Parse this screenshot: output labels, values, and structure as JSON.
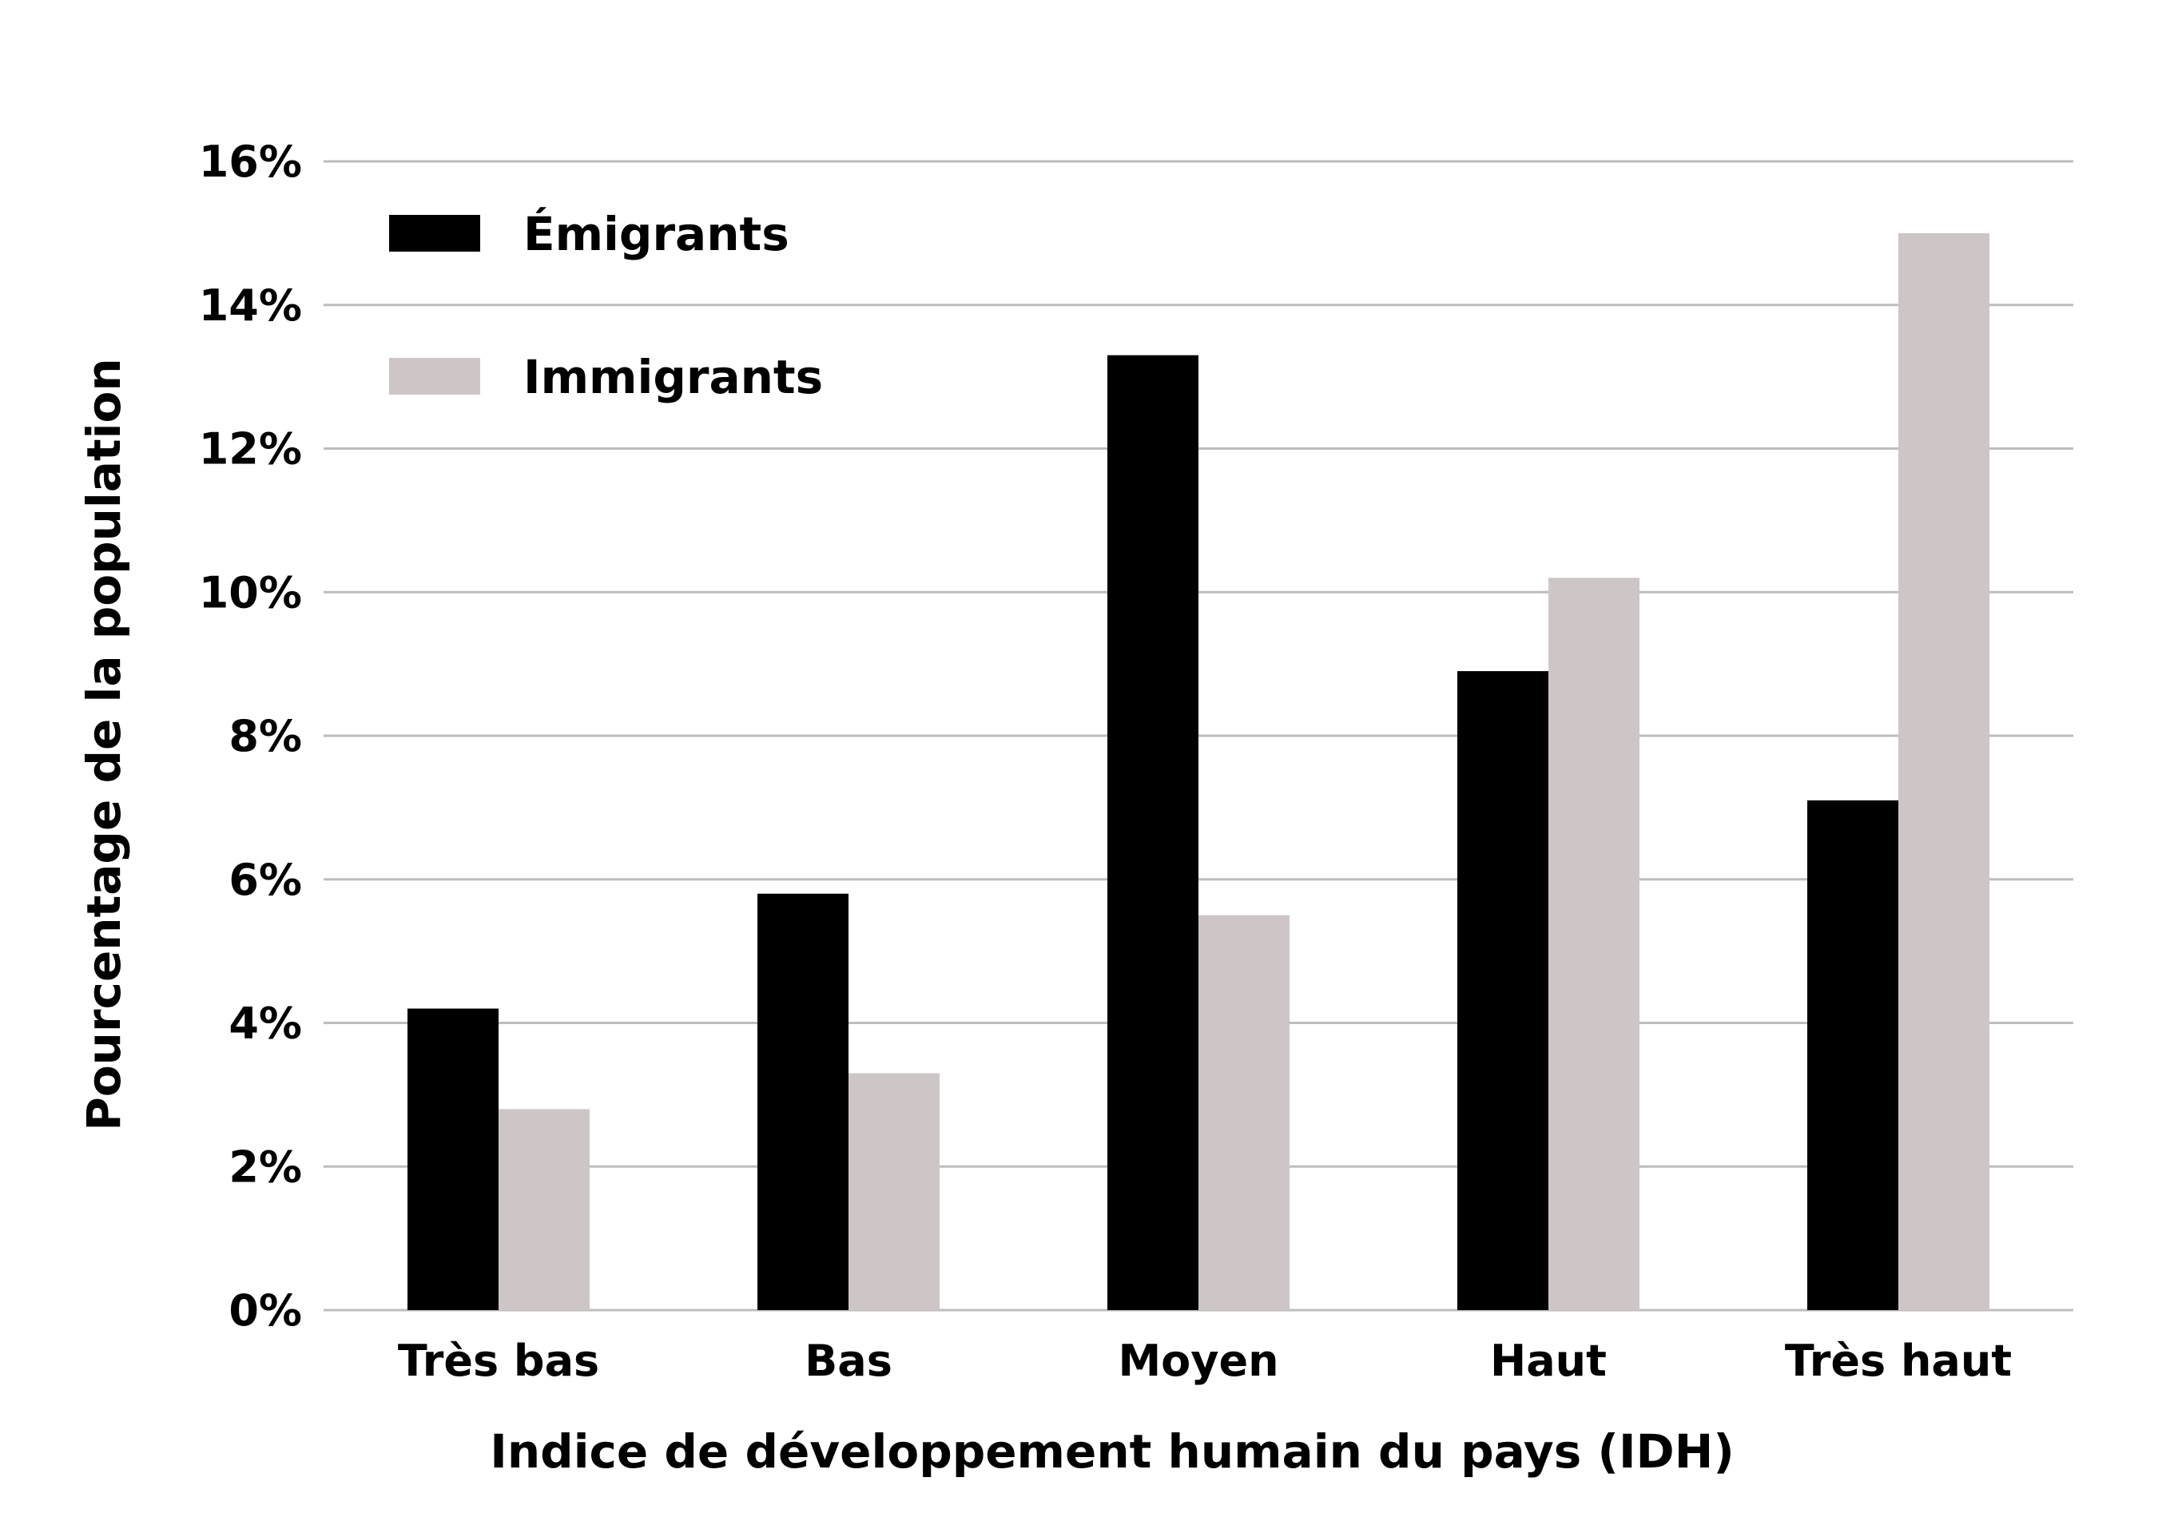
{
  "chart_data": {
    "type": "bar",
    "categories": [
      "Très bas",
      "Bas",
      "Moyen",
      "Haut",
      "Très haut"
    ],
    "series": [
      {
        "name": "Émigrants",
        "color": "#000000",
        "values": [
          4.2,
          5.8,
          13.3,
          8.9,
          7.1
        ]
      },
      {
        "name": "Immigrants",
        "color": "#cec6c6",
        "values": [
          2.8,
          3.3,
          5.5,
          10.2,
          15.0
        ]
      }
    ],
    "xlabel": "Indice de développement humain du pays (IDH)",
    "ylabel": "Pourcentage de la population",
    "ylim": [
      0,
      16
    ],
    "yticks": [
      "0%",
      "2%",
      "4%",
      "6%",
      "8%",
      "10%",
      "12%",
      "14%",
      "16%"
    ],
    "grid": true,
    "gridline_color": "#bdbdbd",
    "legend_position": "top-left"
  }
}
